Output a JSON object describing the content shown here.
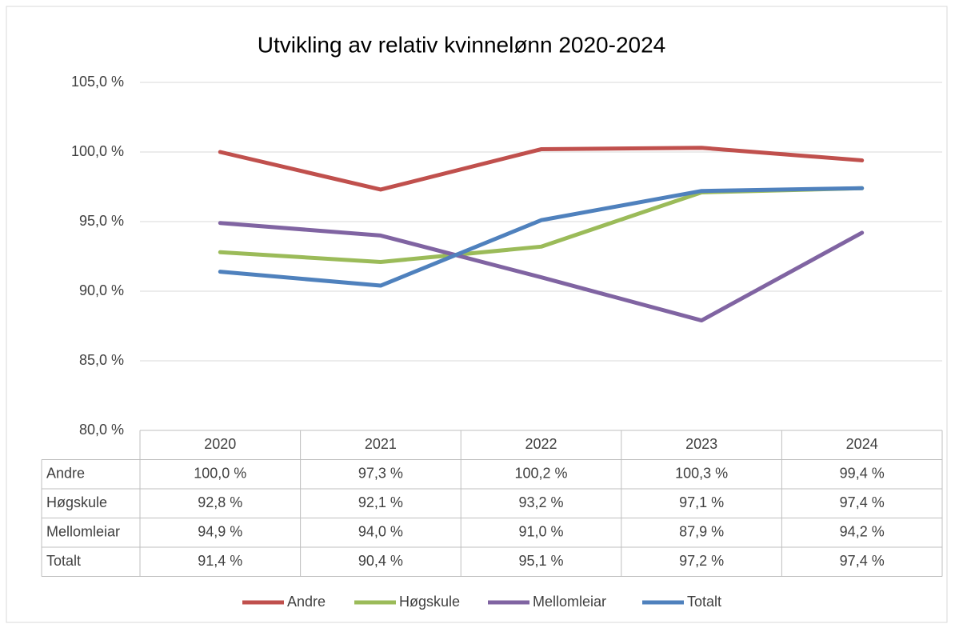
{
  "chart_data": {
    "type": "line",
    "title": "Utvikling av relativ kvinnelønn 2020-2024",
    "categories": [
      "2020",
      "2021",
      "2022",
      "2023",
      "2024"
    ],
    "series": [
      {
        "name": "Andre",
        "color": "#c0504d",
        "values": [
          100.0,
          97.3,
          100.2,
          100.3,
          99.4
        ],
        "value_labels": [
          "100,0 %",
          "97,3 %",
          "100,2 %",
          "100,3 %",
          "99,4 %"
        ]
      },
      {
        "name": "Høgskule",
        "color": "#9bbb59",
        "values": [
          92.8,
          92.1,
          93.2,
          97.1,
          97.4
        ],
        "value_labels": [
          "92,8 %",
          "92,1 %",
          "93,2 %",
          "97,1 %",
          "97,4 %"
        ]
      },
      {
        "name": "Mellomleiar",
        "color": "#8064a2",
        "values": [
          94.9,
          94.0,
          91.0,
          87.9,
          94.2
        ],
        "value_labels": [
          "94,9 %",
          "94,0 %",
          "91,0 %",
          "87,9 %",
          "94,2 %"
        ]
      },
      {
        "name": "Totalt",
        "color": "#4f81bd",
        "values": [
          91.4,
          90.4,
          95.1,
          97.2,
          97.4
        ],
        "value_labels": [
          "91,4 %",
          "90,4 %",
          "95,1 %",
          "97,2 %",
          "97,4 %"
        ]
      }
    ],
    "ylim": [
      80,
      105
    ],
    "yticks": [
      {
        "value": 80,
        "label": "80,0 %"
      },
      {
        "value": 85,
        "label": "85,0 %"
      },
      {
        "value": 90,
        "label": "90,0 %"
      },
      {
        "value": 95,
        "label": "95,0 %"
      },
      {
        "value": 100,
        "label": "100,0 %"
      },
      {
        "value": 105,
        "label": "105,0 %"
      }
    ],
    "grid": true,
    "legend": "bottom"
  }
}
